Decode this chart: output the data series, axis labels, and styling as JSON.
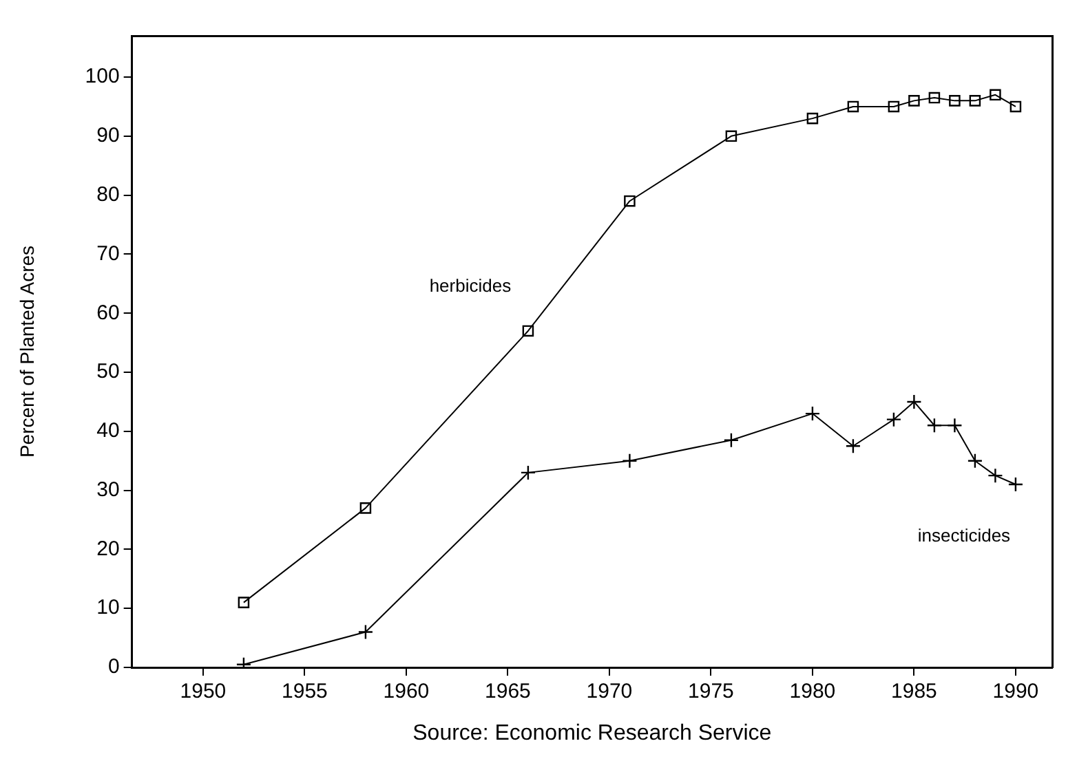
{
  "chart_data": {
    "type": "line",
    "ylabel": "Percent of Planted Acres",
    "annotations": [
      "Source: Economic Research Service"
    ],
    "x": [
      1952,
      1958,
      1966,
      1971,
      1976,
      1980,
      1982,
      1984,
      1985,
      1986,
      1987,
      1988,
      1989,
      1990
    ],
    "series": [
      {
        "name": "herbicides",
        "color": "#000000",
        "marker": "square",
        "values": [
          11,
          27,
          57,
          79,
          90,
          93,
          95,
          95,
          96,
          96.5,
          96,
          96,
          97,
          95
        ]
      },
      {
        "name": "insecticides",
        "color": "#000000",
        "marker": "cross",
        "values": [
          0.5,
          6,
          33,
          35,
          38.5,
          43,
          37.5,
          42,
          45,
          41,
          41,
          35,
          32.5,
          31
        ]
      }
    ],
    "xlim": [
      1946.5,
      1991.8
    ],
    "xticks": [
      1950,
      1955,
      1960,
      1965,
      1970,
      1975,
      1980,
      1985,
      1990
    ],
    "ylim": [
      0,
      107
    ],
    "yticks": [
      0,
      10,
      20,
      30,
      40,
      50,
      60,
      70,
      80,
      90,
      100
    ],
    "grid": false,
    "legend": false,
    "line_style": "solid"
  }
}
